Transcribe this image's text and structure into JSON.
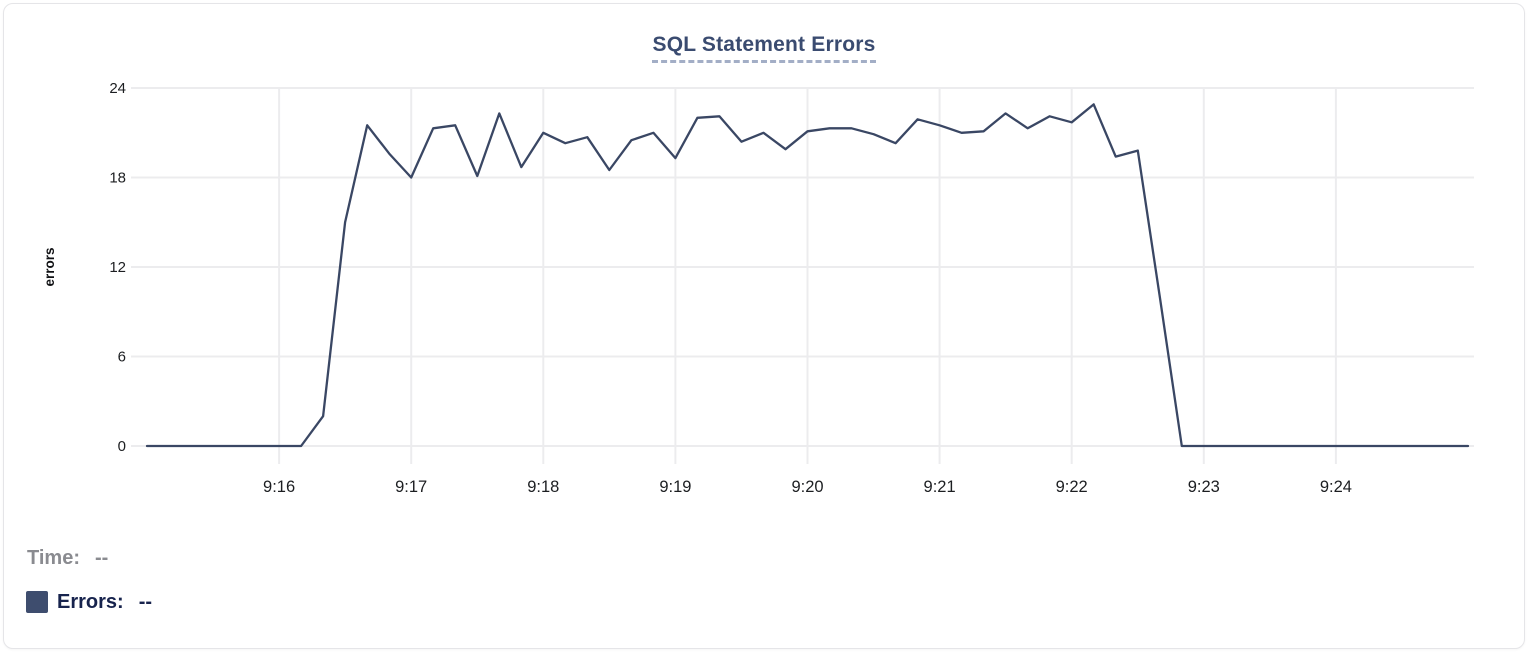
{
  "title": "SQL Statement Errors",
  "colors": {
    "title": "#3a4b70",
    "dash_underline": "#a3aec6",
    "line": "#3a4764",
    "grid": "#ececee",
    "tick_label": "#1c1e21",
    "axis_title": "#101114",
    "time_label": "#8a8b90",
    "errors_label": "#17234d",
    "swatch": "#3e4d6e",
    "card_border": "#e5e5e8"
  },
  "tooltip": {
    "time_label": "Time:",
    "time_value": "--",
    "errors_label": "Errors:",
    "errors_value": "--"
  },
  "chart_data": {
    "type": "line",
    "title": "SQL Statement Errors",
    "xlabel": "",
    "ylabel": "errors",
    "ylim": [
      0,
      24
    ],
    "yticks": [
      0,
      6,
      12,
      18,
      24
    ],
    "xticks": [
      "9:16",
      "9:17",
      "9:18",
      "9:19",
      "9:20",
      "9:21",
      "9:22",
      "9:23",
      "9:24"
    ],
    "grid": true,
    "legend_position": "bottom-left",
    "series_name": "Errors",
    "x": [
      "9:15:00",
      "9:15:10",
      "9:15:20",
      "9:15:30",
      "9:15:40",
      "9:15:50",
      "9:16:00",
      "9:16:10",
      "9:16:20",
      "9:16:30",
      "9:16:40",
      "9:16:50",
      "9:17:00",
      "9:17:10",
      "9:17:20",
      "9:17:30",
      "9:17:40",
      "9:17:50",
      "9:18:00",
      "9:18:10",
      "9:18:20",
      "9:18:30",
      "9:18:40",
      "9:18:50",
      "9:19:00",
      "9:19:10",
      "9:19:20",
      "9:19:30",
      "9:19:40",
      "9:19:50",
      "9:20:00",
      "9:20:10",
      "9:20:20",
      "9:20:30",
      "9:20:40",
      "9:20:50",
      "9:21:00",
      "9:21:10",
      "9:21:20",
      "9:21:30",
      "9:21:40",
      "9:21:50",
      "9:22:00",
      "9:22:10",
      "9:22:20",
      "9:22:30",
      "9:22:40",
      "9:22:50",
      "9:23:00",
      "9:23:10",
      "9:23:20",
      "9:23:30",
      "9:23:40",
      "9:23:50",
      "9:24:00",
      "9:24:10",
      "9:24:20",
      "9:24:30",
      "9:24:40",
      "9:24:50",
      "9:25:00"
    ],
    "values": [
      0,
      0,
      0,
      0,
      0,
      0,
      0,
      0,
      2,
      15,
      21.5,
      19.6,
      18,
      21.3,
      21.5,
      18.1,
      22.3,
      18.7,
      21,
      20.3,
      20.7,
      18.5,
      20.5,
      21,
      19.3,
      22,
      22.1,
      20.4,
      21,
      19.9,
      21.1,
      21.3,
      21.3,
      20.9,
      20.3,
      21.9,
      21.5,
      21,
      21.1,
      22.3,
      21.3,
      22.1,
      21.7,
      22.9,
      19.4,
      19.8,
      10,
      0,
      0,
      0,
      0,
      0,
      0,
      0,
      0,
      0,
      0,
      0,
      0,
      0,
      0
    ]
  }
}
